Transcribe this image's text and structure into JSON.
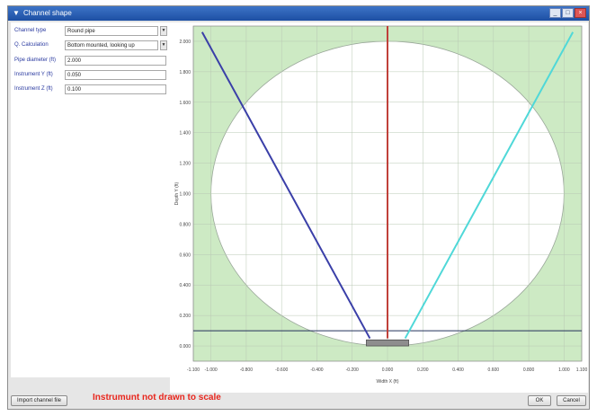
{
  "window": {
    "title": "Channel shape",
    "buttons": [
      "minimize",
      "maximize",
      "close"
    ]
  },
  "form": {
    "fields": [
      {
        "label": "Channel type",
        "value": "Round pipe",
        "type": "select"
      },
      {
        "label": "Q. Calculation",
        "value": "Bottom mounted, looking up",
        "type": "select"
      },
      {
        "label": "Pipe diameter (ft)",
        "value": "2.000",
        "type": "text"
      },
      {
        "label": "Instrument Y (ft)",
        "value": "0.050",
        "type": "text"
      },
      {
        "label": "Instrument Z (ft)",
        "value": "0.100",
        "type": "text"
      }
    ]
  },
  "chart_data": {
    "type": "scatter",
    "xlabel": "Width X (ft)",
    "ylabel": "Depth Y (ft)",
    "xlim": [
      -1.1,
      1.1
    ],
    "ylim": [
      -0.1,
      2.1
    ],
    "x_ticks": [
      "-1.100",
      "-1.000",
      "-0.800",
      "-0.600",
      "-0.400",
      "-0.200",
      "0.000",
      "0.200",
      "0.400",
      "0.600",
      "0.800",
      "1.000",
      "1.100"
    ],
    "x_tick_values": [
      -1.1,
      -1.0,
      -0.8,
      -0.6,
      -0.4,
      -0.2,
      0.0,
      0.2,
      0.4,
      0.6,
      0.8,
      1.0,
      1.1
    ],
    "y_ticks": [
      "0.000",
      "0.200",
      "0.400",
      "0.600",
      "0.800",
      "1.000",
      "1.200",
      "1.400",
      "1.600",
      "1.800",
      "2.000"
    ],
    "y_tick_values": [
      0.0,
      0.2,
      0.4,
      0.6,
      0.8,
      1.0,
      1.2,
      1.4,
      1.6,
      1.8,
      2.0
    ],
    "pipe": {
      "center": [
        0,
        1.0
      ],
      "radius": 1.0
    },
    "level_y": 0.1,
    "instrument": {
      "x": [
        -0.12,
        0.12
      ],
      "y": [
        0.0,
        0.04
      ]
    },
    "series": [
      {
        "color": "#3a3fa8",
        "x": [
          -0.1,
          -1.05
        ],
        "y": [
          0.05,
          2.06
        ]
      },
      {
        "color": "#4fd8d8",
        "x": [
          0.1,
          1.05
        ],
        "y": [
          0.05,
          2.06
        ]
      },
      {
        "color": "#c0403a",
        "x": [
          0.0,
          0.0
        ],
        "y": [
          0.05,
          2.1
        ]
      }
    ],
    "colors": {
      "background": "#cdeac4",
      "pipe_fill": "#ffffff",
      "grid": "#b9c8b4",
      "level": "#23305a"
    }
  },
  "footer": {
    "left_button": "Import channel file",
    "note": "Instrumunt not drawn to scale",
    "ok": "OK",
    "cancel": "Cancel"
  }
}
